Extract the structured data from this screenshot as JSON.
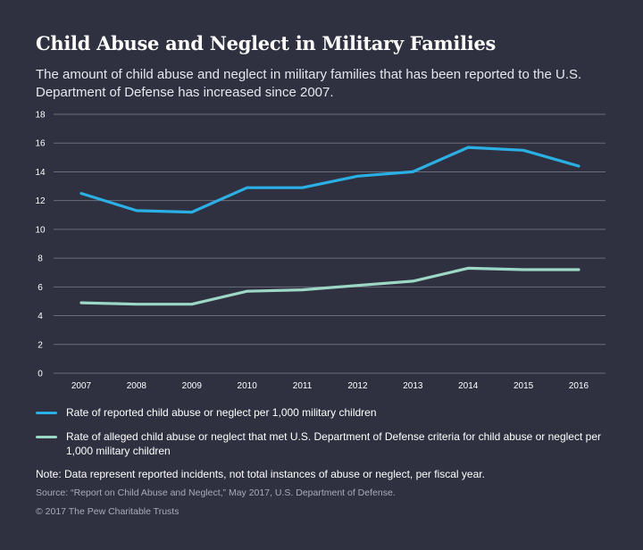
{
  "title": "Child Abuse and Neglect in Military Families",
  "subtitle": "The amount of child abuse and neglect in military families that has been reported to the U.S. Department of Defense has increased since 2007.",
  "note": "Note: Data represent reported incidents, not total instances of abuse or neglect, per fiscal year.",
  "source": "Source: “Report on Child Abuse and Neglect,” May 2017, U.S. Department of Defense.",
  "copyright": "© 2017 The Pew Charitable Trusts",
  "colors": {
    "background": "#2f3140",
    "gridline": "#6b6d7a",
    "series_reported": "#2ab0e4",
    "series_alleged": "#9cd8c5"
  },
  "chart_data": {
    "type": "line",
    "title": "Child Abuse and Neglect in Military Families",
    "xlabel": "",
    "ylabel": "",
    "categories": [
      "2007",
      "2008",
      "2009",
      "2010",
      "2011",
      "2012",
      "2013",
      "2014",
      "2015",
      "2016"
    ],
    "y_ticks": [
      "0",
      "2",
      "4",
      "6",
      "8",
      "10",
      "12",
      "14",
      "16",
      "18"
    ],
    "ylim": [
      0,
      18
    ],
    "grid": true,
    "legend_position": "bottom",
    "series": [
      {
        "name": "Rate of reported child abuse or neglect per 1,000 military children",
        "color": "#2ab0e4",
        "values": [
          12.5,
          11.3,
          11.2,
          12.9,
          12.9,
          13.7,
          14.0,
          15.7,
          15.5,
          14.4
        ]
      },
      {
        "name": "Rate of alleged child abuse or neglect that met U.S. Department of Defense criteria for child abuse or neglect per 1,000 military children",
        "color": "#9cd8c5",
        "values": [
          4.9,
          4.8,
          4.8,
          5.7,
          5.8,
          6.1,
          6.4,
          7.3,
          7.2,
          7.2
        ]
      }
    ]
  }
}
